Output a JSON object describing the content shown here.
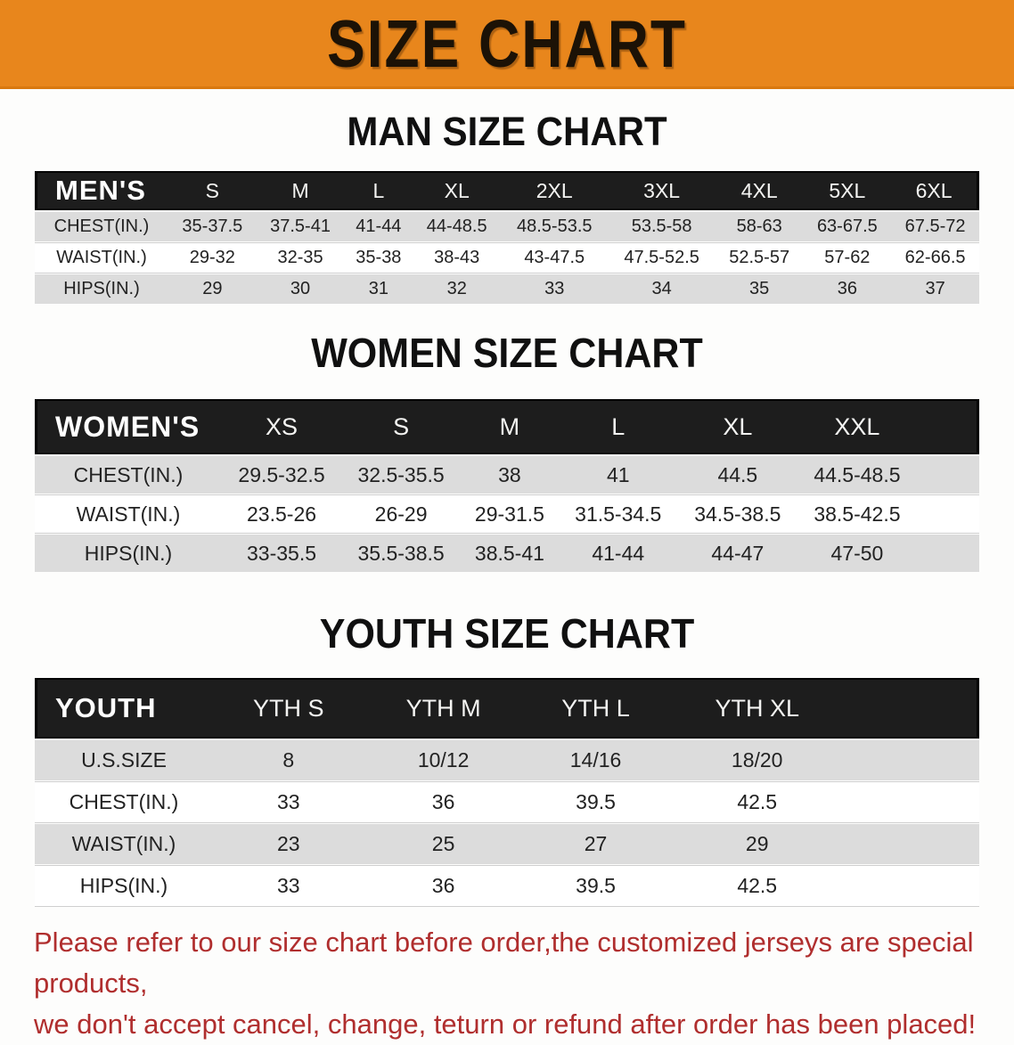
{
  "banner": {
    "title": "SIZE CHART",
    "bg_color": "#E8861C",
    "text_color": "#1C1206"
  },
  "sections": [
    {
      "heading": "MAN SIZE CHART",
      "table": {
        "header_label": "MEN'S",
        "columns": [
          "S",
          "M",
          "L",
          "XL",
          "2XL",
          "3XL",
          "4XL",
          "5XL",
          "6XL"
        ],
        "rows": [
          {
            "label": "CHEST(IN.)",
            "values": [
              "35-37.5",
              "37.5-41",
              "41-44",
              "44-48.5",
              "48.5-53.5",
              "53.5-58",
              "58-63",
              "63-67.5",
              "67.5-72"
            ]
          },
          {
            "label": "WAIST(IN.)",
            "values": [
              "29-32",
              "32-35",
              "35-38",
              "38-43",
              "43-47.5",
              "47.5-52.5",
              "52.5-57",
              "57-62",
              "62-66.5"
            ]
          },
          {
            "label": "HIPS(IN.)",
            "values": [
              "29",
              "30",
              "31",
              "32",
              "33",
              "34",
              "35",
              "36",
              "37"
            ]
          }
        ]
      }
    },
    {
      "heading": "WOMEN SIZE CHART",
      "table": {
        "header_label": "WOMEN'S",
        "columns": [
          "XS",
          "S",
          "M",
          "L",
          "XL",
          "XXL"
        ],
        "rows": [
          {
            "label": "CHEST(IN.)",
            "values": [
              "29.5-32.5",
              "32.5-35.5",
              "38",
              "41",
              "44.5",
              "44.5-48.5"
            ]
          },
          {
            "label": "WAIST(IN.)",
            "values": [
              "23.5-26",
              "26-29",
              "29-31.5",
              "31.5-34.5",
              "34.5-38.5",
              "38.5-42.5"
            ]
          },
          {
            "label": "HIPS(IN.)",
            "values": [
              "33-35.5",
              "35.5-38.5",
              "38.5-41",
              "41-44",
              "44-47",
              "47-50"
            ]
          }
        ]
      }
    },
    {
      "heading": "YOUTH SIZE CHART",
      "table": {
        "header_label": "YOUTH",
        "columns": [
          "YTH S",
          "YTH M",
          "YTH L",
          "YTH XL"
        ],
        "rows": [
          {
            "label": "U.S.SIZE",
            "values": [
              "8",
              "10/12",
              "14/16",
              "18/20"
            ]
          },
          {
            "label": "CHEST(IN.)",
            "values": [
              "33",
              "36",
              "39.5",
              "42.5"
            ]
          },
          {
            "label": "WAIST(IN.)",
            "values": [
              "23",
              "25",
              "27",
              "29"
            ]
          },
          {
            "label": "HIPS(IN.)",
            "values": [
              "33",
              "36",
              "39.5",
              "42.5"
            ]
          }
        ]
      }
    }
  ],
  "disclaimer": {
    "lines": [
      "Please refer to our size chart before order,the customized jerseys are special products,",
      "we don't accept cancel, change, teturn or refund after order has been placed!"
    ],
    "color": "#B02E2E"
  },
  "colors": {
    "banner_bg": "#E8861C",
    "table_header_bar": "#1D1D1D",
    "row_shaded": "#DCDCDC",
    "row_plain": "#FFFFFF",
    "heading_text": "#101010",
    "disclaimer_text": "#B02E2E"
  }
}
